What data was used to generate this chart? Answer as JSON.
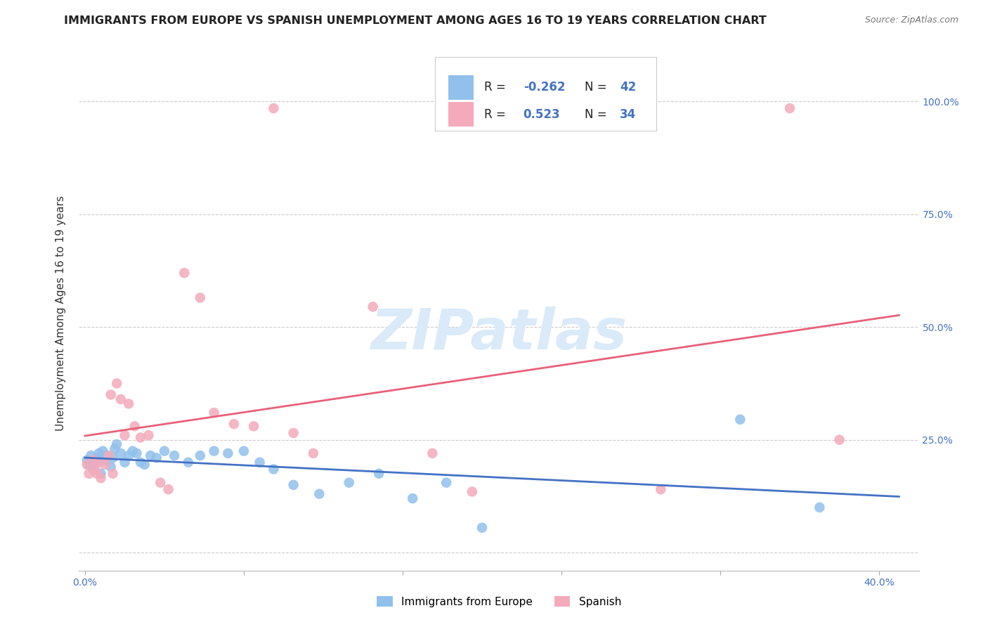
{
  "title": "IMMIGRANTS FROM EUROPE VS SPANISH UNEMPLOYMENT AMONG AGES 16 TO 19 YEARS CORRELATION CHART",
  "source": "Source: ZipAtlas.com",
  "ylabel": "Unemployment Among Ages 16 to 19 years",
  "xlim": [
    -0.003,
    0.42
  ],
  "ylim": [
    -0.04,
    1.1
  ],
  "x_ticks": [
    0.0,
    0.08,
    0.16,
    0.24,
    0.32,
    0.4
  ],
  "x_tick_labels": [
    "0.0%",
    "",
    "",
    "",
    "",
    "40.0%"
  ],
  "y_ticks": [
    0.0,
    0.25,
    0.5,
    0.75,
    1.0
  ],
  "y_tick_labels": [
    "",
    "25.0%",
    "50.0%",
    "75.0%",
    "100.0%"
  ],
  "legend_R_blue": "-0.262",
  "legend_N_blue": "42",
  "legend_R_pink": "0.523",
  "legend_N_pink": "34",
  "legend_label_blue": "Immigrants from Europe",
  "legend_label_pink": "Spanish",
  "color_blue": "#92C0EC",
  "color_pink": "#F4AABB",
  "line_color_blue": "#4472C4",
  "line_color_pink": "#E8607A",
  "watermark": "ZIPatlas",
  "watermark_color": "#DAEAF8",
  "blue_points_x": [
    0.001,
    0.002,
    0.003,
    0.004,
    0.005,
    0.006,
    0.007,
    0.008,
    0.009,
    0.01,
    0.011,
    0.013,
    0.014,
    0.015,
    0.016,
    0.018,
    0.02,
    0.022,
    0.024,
    0.026,
    0.028,
    0.03,
    0.033,
    0.036,
    0.04,
    0.045,
    0.052,
    0.058,
    0.065,
    0.072,
    0.08,
    0.088,
    0.095,
    0.105,
    0.118,
    0.133,
    0.148,
    0.165,
    0.182,
    0.2,
    0.33,
    0.37
  ],
  "blue_points_y": [
    0.205,
    0.195,
    0.215,
    0.185,
    0.2,
    0.21,
    0.22,
    0.175,
    0.225,
    0.205,
    0.215,
    0.19,
    0.21,
    0.23,
    0.24,
    0.22,
    0.2,
    0.215,
    0.225,
    0.22,
    0.2,
    0.195,
    0.215,
    0.21,
    0.225,
    0.215,
    0.2,
    0.215,
    0.225,
    0.22,
    0.225,
    0.2,
    0.185,
    0.15,
    0.13,
    0.155,
    0.175,
    0.12,
    0.155,
    0.055,
    0.295,
    0.1
  ],
  "pink_points_x": [
    0.001,
    0.002,
    0.004,
    0.005,
    0.006,
    0.007,
    0.008,
    0.01,
    0.012,
    0.013,
    0.014,
    0.016,
    0.018,
    0.02,
    0.022,
    0.025,
    0.028,
    0.032,
    0.038,
    0.042,
    0.05,
    0.058,
    0.065,
    0.075,
    0.085,
    0.095,
    0.105,
    0.115,
    0.145,
    0.175,
    0.195,
    0.29,
    0.355,
    0.38
  ],
  "pink_points_y": [
    0.195,
    0.175,
    0.205,
    0.185,
    0.175,
    0.2,
    0.165,
    0.195,
    0.215,
    0.35,
    0.175,
    0.375,
    0.34,
    0.26,
    0.33,
    0.28,
    0.255,
    0.26,
    0.155,
    0.14,
    0.62,
    0.565,
    0.31,
    0.285,
    0.28,
    0.985,
    0.265,
    0.22,
    0.545,
    0.22,
    0.135,
    0.14,
    0.985,
    0.25
  ],
  "title_fontsize": 11.5,
  "axis_label_fontsize": 11,
  "tick_fontsize": 10,
  "legend_fontsize": 13
}
